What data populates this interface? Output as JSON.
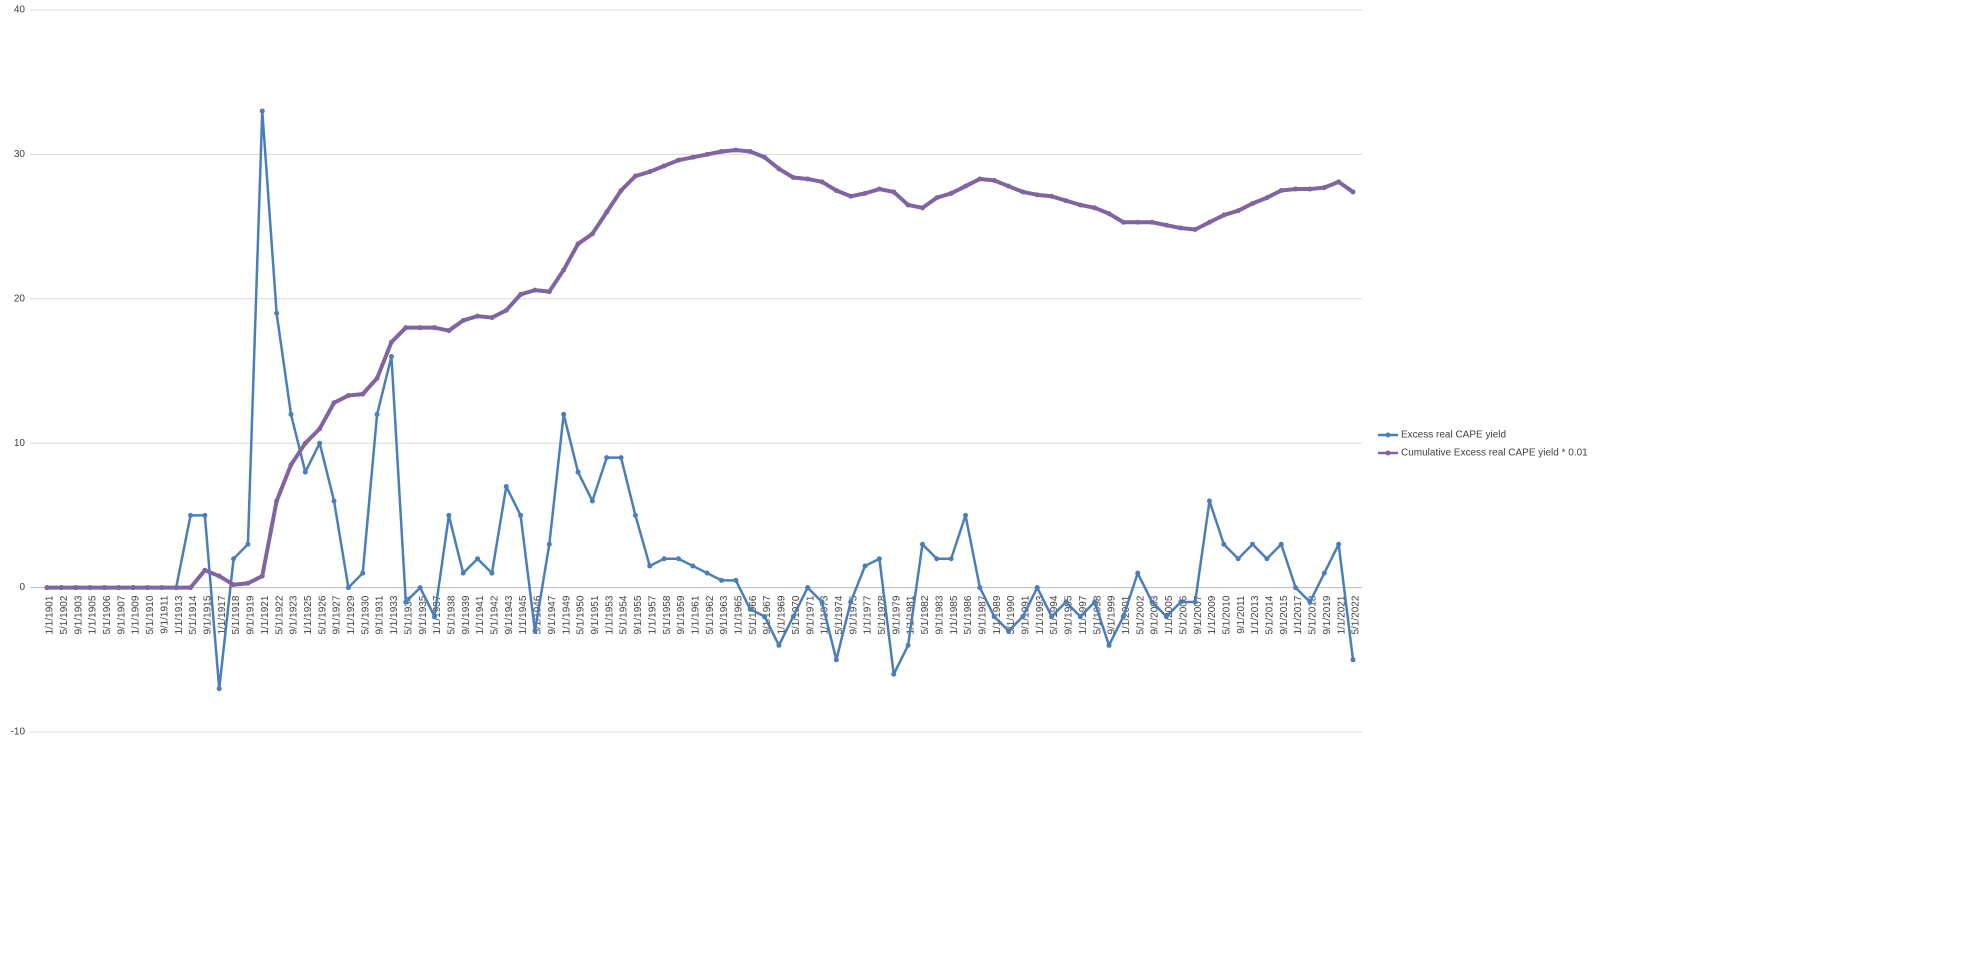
{
  "chart_data": {
    "type": "line",
    "categories": [
      "1/1/1901",
      "5/1/1902",
      "9/1/1903",
      "1/1/1905",
      "5/1/1906",
      "9/1/1907",
      "1/1/1909",
      "5/1/1910",
      "9/1/1911",
      "1/1/1913",
      "5/1/1914",
      "9/1/1915",
      "1/1/1917",
      "5/1/1918",
      "9/1/1919",
      "1/1/1921",
      "5/1/1922",
      "9/1/1923",
      "1/1/1925",
      "5/1/1926",
      "9/1/1927",
      "1/1/1929",
      "5/1/1930",
      "9/1/1931",
      "1/1/1933",
      "5/1/1934",
      "9/1/1935",
      "1/1/1937",
      "5/1/1938",
      "9/1/1939",
      "1/1/1941",
      "5/1/1942",
      "9/1/1943",
      "1/1/1945",
      "5/1/1946",
      "9/1/1947",
      "1/1/1949",
      "5/1/1950",
      "9/1/1951",
      "1/1/1953",
      "5/1/1954",
      "9/1/1955",
      "1/1/1957",
      "5/1/1958",
      "9/1/1959",
      "1/1/1961",
      "5/1/1962",
      "9/1/1963",
      "1/1/1965",
      "5/1/1966",
      "9/1/1967",
      "1/1/1969",
      "5/1/1970",
      "9/1/1971",
      "1/1/1973",
      "5/1/1974",
      "9/1/1975",
      "1/1/1977",
      "5/1/1978",
      "9/1/1979",
      "1/1/1981",
      "5/1/1982",
      "9/1/1983",
      "1/1/1985",
      "5/1/1986",
      "9/1/1987",
      "1/1/1989",
      "5/1/1990",
      "9/1/1991",
      "1/1/1993",
      "5/1/1994",
      "9/1/1995",
      "1/1/1997",
      "5/1/1998",
      "9/1/1999",
      "1/1/2001",
      "5/1/2002",
      "9/1/2003",
      "1/1/2005",
      "5/1/2006",
      "9/1/2007",
      "1/1/2009",
      "5/1/2010",
      "9/1/2011",
      "1/1/2013",
      "5/1/2014",
      "9/1/2015",
      "1/1/2017",
      "5/1/2018",
      "9/1/2019",
      "1/1/2021",
      "5/1/2022"
    ],
    "series": [
      {
        "name": "Excess real CAPE yield",
        "color": "#4a7ebb",
        "values": [
          0,
          0,
          0,
          0,
          0,
          0,
          0,
          0,
          0,
          0,
          5,
          5,
          -7,
          2,
          3,
          33,
          19,
          12,
          8,
          10,
          6,
          0,
          1,
          12,
          16,
          -1,
          0,
          -2,
          5,
          1,
          2,
          1,
          7,
          5,
          -3,
          3,
          12,
          8,
          6,
          9,
          9,
          5,
          1.5,
          2,
          2,
          1.5,
          1,
          0.5,
          0.5,
          -1.5,
          -2,
          -4,
          -2,
          0,
          -1,
          -5,
          -1,
          1.5,
          2,
          -6,
          -4,
          3,
          2,
          2,
          5,
          0,
          -2,
          -3,
          -2,
          0,
          -2,
          -1,
          -2,
          -1,
          -4,
          -2,
          1,
          -1,
          -2,
          -1,
          -1,
          6,
          3,
          2,
          3,
          2,
          3,
          0,
          -1,
          1,
          3,
          -5
        ]
      },
      {
        "name": "Cumulative Excess real CAPE yield * 0.01",
        "color": "#8064a2",
        "values": [
          0,
          0,
          0,
          0,
          0,
          0,
          0,
          0,
          0,
          0,
          0,
          1.2,
          0.8,
          0.2,
          0.3,
          0.8,
          6,
          8.5,
          10,
          11,
          12.8,
          13.3,
          13.4,
          14.5,
          17,
          18,
          18,
          18,
          17.8,
          18.5,
          18.8,
          18.7,
          19.2,
          20.3,
          20.6,
          20.5,
          22,
          23.8,
          24.5,
          26,
          27.5,
          28.5,
          28.8,
          29.2,
          29.6,
          29.8,
          30,
          30.2,
          30.3,
          30.2,
          29.8,
          29,
          28.4,
          28.3,
          28.1,
          27.5,
          27.1,
          27.3,
          27.6,
          27.4,
          26.5,
          26.3,
          27,
          27.3,
          27.8,
          28.3,
          28.2,
          27.8,
          27.4,
          27.2,
          27.1,
          26.8,
          26.5,
          26.3,
          25.9,
          25.3,
          25.3,
          25.3,
          25.1,
          24.9,
          24.8,
          25.3,
          25.8,
          26.1,
          26.6,
          27,
          27.5,
          27.6,
          27.6,
          27.7,
          28.1,
          27.4
        ]
      }
    ],
    "ylim": [
      -10,
      40
    ],
    "yticks": [
      -10,
      0,
      10,
      20,
      30,
      40
    ],
    "grid": true,
    "legend": "right"
  }
}
